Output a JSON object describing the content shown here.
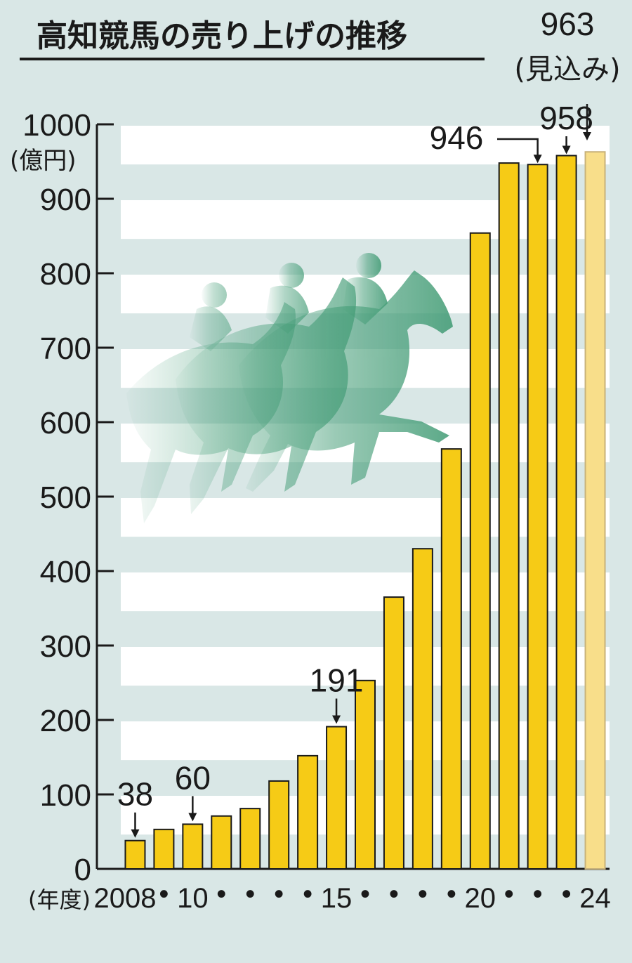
{
  "chart_data": {
    "type": "bar",
    "title": "高知競馬の売り上げの推移",
    "ylabel": "(億円)",
    "xlabel": "(年度)",
    "ylim": [
      0,
      1000
    ],
    "yticks": [
      0,
      100,
      200,
      300,
      400,
      500,
      600,
      700,
      800,
      900,
      1000
    ],
    "categories": [
      "2008",
      "2009",
      "2010",
      "2011",
      "2012",
      "2013",
      "2014",
      "2015",
      "2016",
      "2017",
      "2018",
      "2019",
      "2020",
      "2021",
      "2022",
      "2023",
      "2024"
    ],
    "x_tick_labels": [
      "2008",
      "•",
      "10",
      "•",
      "•",
      "•",
      "•",
      "15",
      "•",
      "•",
      "•",
      "•",
      "20",
      "•",
      "•",
      "•",
      "24"
    ],
    "values": [
      38,
      53,
      60,
      71,
      81,
      118,
      152,
      191,
      253,
      365,
      430,
      564,
      854,
      948,
      946,
      958,
      963
    ],
    "projected_index": 16,
    "annotations": [
      {
        "index": 0,
        "text": "38"
      },
      {
        "index": 2,
        "text": "60"
      },
      {
        "index": 7,
        "text": "191"
      },
      {
        "index": 14,
        "text": "946"
      },
      {
        "index": 15,
        "text": "958"
      },
      {
        "index": 16,
        "text": "963",
        "note": "(見込み)"
      }
    ],
    "colors": {
      "bar": "#f6cb16",
      "bar_edge": "#1a1a1a",
      "bar_projected": "#f8de8a",
      "bar_projected_edge": "#c8b27a",
      "band": "#ffffff",
      "background": "#d9e7e6",
      "horse": "#3f9a73"
    },
    "illustration": "racehorse-silhouettes"
  }
}
